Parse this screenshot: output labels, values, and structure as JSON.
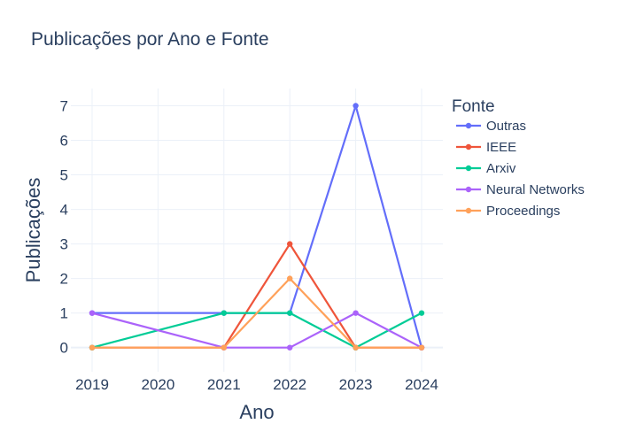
{
  "chart_data": {
    "type": "line",
    "title": "Publicações por Ano e Fonte",
    "xlabel": "Ano",
    "ylabel": "Publicações",
    "legend_title": "Fonte",
    "legend_position": "right",
    "grid": true,
    "xlim": [
      2019,
      2024
    ],
    "ylim": [
      -0.7,
      7.5
    ],
    "x_ticks": [
      "2019",
      "2020",
      "2021",
      "2022",
      "2023",
      "2024"
    ],
    "y_ticks": [
      "0",
      "1",
      "2",
      "3",
      "4",
      "5",
      "6",
      "7"
    ],
    "x": [
      2019,
      2021,
      2022,
      2023,
      2024
    ],
    "series": [
      {
        "name": "Outras",
        "color": "#636efa",
        "values": [
          1,
          1,
          1,
          7,
          0
        ]
      },
      {
        "name": "IEEE",
        "color": "#ef553b",
        "values": [
          0,
          0,
          3,
          0,
          0
        ]
      },
      {
        "name": "Arxiv",
        "color": "#00cc96",
        "values": [
          0,
          1,
          1,
          0,
          1
        ]
      },
      {
        "name": "Neural Networks",
        "color": "#ab63fa",
        "values": [
          1,
          0,
          0,
          1,
          0
        ]
      },
      {
        "name": "Proceedings",
        "color": "#ffa15a",
        "values": [
          0,
          0,
          2,
          0,
          0
        ]
      }
    ]
  }
}
